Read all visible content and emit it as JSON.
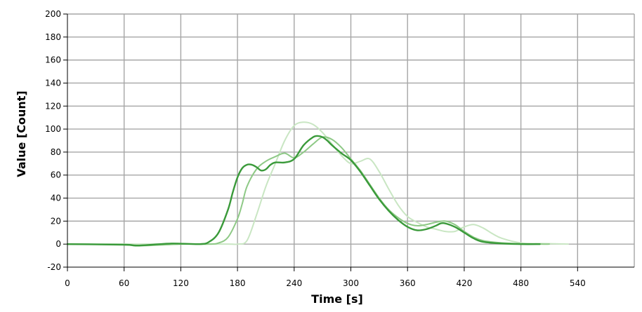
{
  "chart_data": {
    "type": "line",
    "xlabel": "Time [s]",
    "ylabel": "Value [Count]",
    "xlim": [
      0,
      600
    ],
    "ylim": [
      -20,
      200
    ],
    "xticks": [
      0,
      60,
      120,
      180,
      240,
      300,
      360,
      420,
      480,
      540
    ],
    "yticks": [
      -20,
      0,
      20,
      40,
      60,
      80,
      100,
      120,
      140,
      160,
      180,
      200
    ],
    "grid": true,
    "legend": "none",
    "series": [
      {
        "color": "#c9e6c3",
        "opacity": 1,
        "stroke_width": 2,
        "x": [
          0,
          60,
          120,
          170,
          180,
          190,
          200,
          210,
          220,
          230,
          240,
          250,
          260,
          270,
          280,
          290,
          300,
          310,
          320,
          330,
          340,
          350,
          360,
          370,
          380,
          390,
          400,
          410,
          420,
          430,
          440,
          450,
          460,
          480,
          500,
          520,
          530
        ],
        "y": [
          0,
          0,
          0,
          0,
          0,
          3,
          25,
          50,
          70,
          90,
          103,
          106,
          104,
          97,
          87,
          77,
          70,
          72,
          74,
          63,
          48,
          34,
          24,
          19,
          15,
          13,
          11,
          11,
          15,
          17,
          14,
          9,
          5,
          1,
          0.5,
          0.2,
          0
        ]
      },
      {
        "color": "#8ec986",
        "opacity": 1,
        "stroke_width": 2,
        "x": [
          0,
          60,
          75,
          120,
          150,
          160,
          170,
          180,
          185,
          190,
          200,
          210,
          220,
          230,
          240,
          250,
          260,
          270,
          280,
          290,
          300,
          310,
          320,
          330,
          340,
          350,
          360,
          370,
          380,
          390,
          400,
          410,
          420,
          430,
          440,
          460,
          480,
          500,
          510
        ],
        "y": [
          0,
          -0.5,
          -1.5,
          0,
          0,
          1,
          6,
          22,
          35,
          50,
          65,
          72,
          76,
          79,
          75,
          80,
          87,
          93,
          91,
          84,
          74,
          64,
          52,
          40,
          30,
          23,
          18,
          16,
          17,
          19,
          20,
          17,
          11,
          6,
          3,
          1,
          0.3,
          0,
          0
        ]
      },
      {
        "color": "#3a9a3a",
        "opacity": 1,
        "stroke_width": 2.4,
        "x": [
          0,
          60,
          75,
          110,
          140,
          150,
          160,
          170,
          175,
          180,
          185,
          190,
          195,
          200,
          205,
          210,
          215,
          220,
          230,
          240,
          250,
          260,
          265,
          270,
          275,
          280,
          290,
          300,
          310,
          320,
          330,
          340,
          350,
          360,
          370,
          380,
          390,
          395,
          400,
          410,
          420,
          430,
          440,
          460,
          480,
          500
        ],
        "y": [
          0,
          -0.5,
          -1.2,
          0.5,
          0,
          2,
          10,
          30,
          45,
          58,
          66,
          69,
          69,
          67,
          64,
          65,
          69,
          71,
          71,
          74,
          86,
          93,
          94,
          93,
          90,
          86,
          79,
          73,
          63,
          51,
          39,
          29,
          21,
          15,
          12,
          13,
          16,
          18,
          18,
          15,
          10,
          5,
          2,
          0.5,
          0,
          0
        ]
      }
    ]
  }
}
